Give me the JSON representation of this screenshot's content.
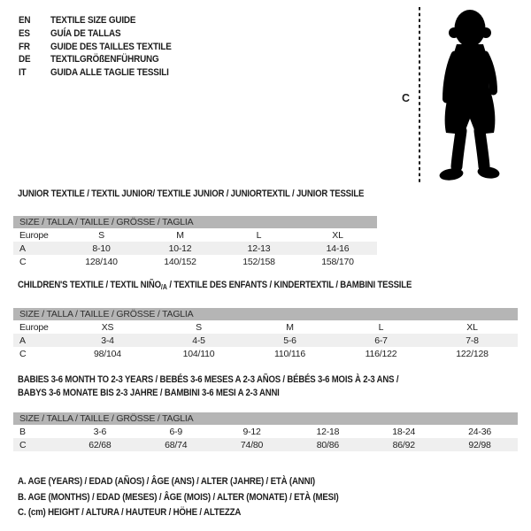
{
  "header": {
    "languages": [
      {
        "code": "EN",
        "title": "TEXTILE SIZE GUIDE"
      },
      {
        "code": "ES",
        "title": "GUÍA DE TALLAS"
      },
      {
        "code": "FR",
        "title": "GUIDE DES TAILLES TEXTILE"
      },
      {
        "code": "DE",
        "title": "TEXTILGRÖßENFÜHRUNG"
      },
      {
        "code": "IT",
        "title": "GUIDA ALLE TAGLIE TESSILI"
      }
    ]
  },
  "figure": {
    "image_name": "baby-silhouette",
    "marker_label": "C"
  },
  "colors": {
    "size_header_bar_bg": "#b5b5b5",
    "row_stripe_bg": "#efefef",
    "text": "#1d1d1d",
    "silhouette": "#000000"
  },
  "tables": [
    {
      "name": "junior",
      "title_lines": [
        [
          {
            "text": "JUNIOR TEXTILE / TEXTIL JUNIOR/ TEXTILE JUNIOR / JUNIORTEXTIL / JUNIOR TESSILE"
          }
        ]
      ],
      "size_header": "SIZE / TALLA / TAILLE / GRÖSSE / TAGLIA",
      "rows": [
        {
          "label": "Europe",
          "cells": [
            "S",
            "M",
            "L",
            "XL"
          ],
          "shaded": false
        },
        {
          "label": "A",
          "cells": [
            "8-10",
            "10-12",
            "12-13",
            "14-16"
          ],
          "shaded": true
        },
        {
          "label": "C",
          "cells": [
            "128/140",
            "140/152",
            "152/158",
            "158/170"
          ],
          "shaded": false
        }
      ]
    },
    {
      "name": "children",
      "title_lines": [
        [
          {
            "text": "CHILDREN'S TEXTILE / TEXTIL NIÑO"
          },
          {
            "text": "/A",
            "sub": true
          },
          {
            "text": " / TEXTILE DES ENFANTS / KINDERTEXTIL / BAMBINI TESSILE"
          }
        ]
      ],
      "size_header": "SIZE / TALLA / TAILLE / GRÖSSE / TAGLIA",
      "rows": [
        {
          "label": "Europe",
          "cells": [
            "XS",
            "S",
            "M",
            "L",
            "XL"
          ],
          "shaded": false
        },
        {
          "label": "A",
          "cells": [
            "3-4",
            "4-5",
            "5-6",
            "6-7",
            "7-8"
          ],
          "shaded": true
        },
        {
          "label": "C",
          "cells": [
            "98/104",
            "104/110",
            "110/116",
            "116/122",
            "122/128"
          ],
          "shaded": false
        }
      ]
    },
    {
      "name": "babies",
      "title_lines": [
        [
          {
            "text": "BABIES 3-6 MONTH TO 2-3 YEARS / BEBÉS 3-6 MESES A 2-3 AÑOS / BÉBÉS 3-6 MOIS À 2-3 ANS /"
          }
        ],
        [
          {
            "text": "BABYS 3-6 MONATE BIS 2-3 JAHRE / BAMBINI 3-6 MESI A 2-3 ANNI"
          }
        ]
      ],
      "size_header": "SIZE / TALLA / TAILLE / GRÖSSE / TAGLIA",
      "rows": [
        {
          "label": "B",
          "cells": [
            "3-6",
            "6-9",
            "9-12",
            "12-18",
            "18-24",
            "24-36"
          ],
          "shaded": false
        },
        {
          "label": "C",
          "cells": [
            "62/68",
            "68/74",
            "74/80",
            "80/86",
            "86/92",
            "92/98"
          ],
          "shaded": true
        }
      ]
    }
  ],
  "footnotes": [
    "A. AGE (YEARS) / EDAD (AÑOS) / ÂGE (ANS) / ALTER (JAHRE) / ETÀ (ANNI)",
    "B. AGE (MONTHS) / EDAD (MESES) / ÂGE (MOIS) / ALTER (MONATE) / ETÀ (MESI)",
    "C. (cm) HEIGHT / ALTURA / HAUTEUR / HÖHE / ALTEZZA"
  ]
}
